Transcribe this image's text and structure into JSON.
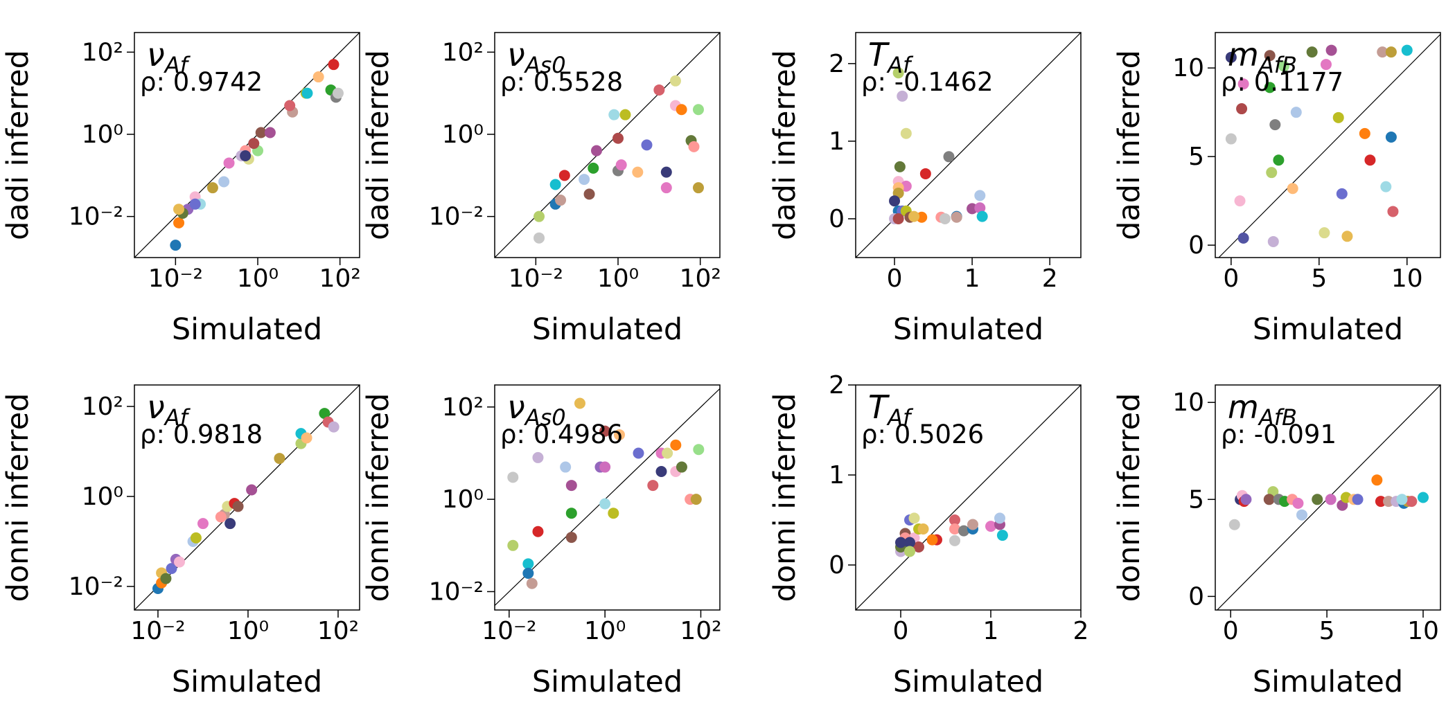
{
  "chart_data": [
    {
      "type": "scatter",
      "title": "ν",
      "title_subscript": "Af",
      "annotation": "ρ: 0.9742",
      "xlabel": "Simulated",
      "ylabel": "dadi inferred",
      "log_scale": true,
      "diagonal": true,
      "xlim": [
        0.001,
        300
      ],
      "ylim": [
        0.001,
        300
      ],
      "xticks": [
        {
          "value": 0.01,
          "label": "10⁻²"
        },
        {
          "value": 1,
          "label": "10⁰"
        },
        {
          "value": 100,
          "label": "10²"
        }
      ],
      "yticks": [
        {
          "value": 0.01,
          "label": "10⁻²"
        },
        {
          "value": 1,
          "label": "10⁰"
        },
        {
          "value": 100,
          "label": "10²"
        }
      ],
      "x": [
        0.01,
        0.15,
        0.012,
        30,
        60,
        1,
        70,
        0.5,
        0.02,
        0.4,
        1.2,
        7,
        0.2,
        0.03,
        80,
        90,
        15,
        0.6,
        16,
        0.04,
        0.5,
        0.015,
        0.08,
        0.8,
        2,
        0.03,
        0.012,
        6
      ],
      "y": [
        0.002,
        0.07,
        0.007,
        25,
        12,
        0.4,
        50,
        0.4,
        0.015,
        0.3,
        1.1,
        3.5,
        0.2,
        0.03,
        8,
        10,
        10,
        0.25,
        10,
        0.02,
        0.3,
        0.012,
        0.05,
        0.6,
        1.1,
        0.02,
        0.015,
        5
      ],
      "colors": [
        "#1f77b4",
        "#aec7e8",
        "#ff7f0e",
        "#ffbb78",
        "#2ca02c",
        "#98df8a",
        "#d62728",
        "#ff9896",
        "#9467bd",
        "#c5b0d5",
        "#8c564b",
        "#c49c94",
        "#e377c2",
        "#f7b6d2",
        "#7f7f7f",
        "#c7c7c7",
        "#bcbd22",
        "#dbdb8d",
        "#17becf",
        "#9edae5",
        "#393b79",
        "#637939",
        "#bd9e39",
        "#ad494a",
        "#a55194",
        "#6b6ecf",
        "#e7ba52",
        "#d6616b"
      ]
    },
    {
      "type": "scatter",
      "title": "ν",
      "title_subscript": "As0",
      "annotation": "ρ: 0.5528",
      "xlabel": "Simulated",
      "ylabel": "dadi inferred",
      "log_scale": true,
      "diagonal": true,
      "xlim": [
        0.001,
        300
      ],
      "ylim": [
        0.001,
        300
      ],
      "xticks": [
        {
          "value": 0.01,
          "label": "10⁻²"
        },
        {
          "value": 1,
          "label": "10⁰"
        },
        {
          "value": 100,
          "label": "10²"
        }
      ],
      "yticks": [
        {
          "value": 0.01,
          "label": "10⁻²"
        },
        {
          "value": 1,
          "label": "10⁰"
        },
        {
          "value": 100,
          "label": "10²"
        }
      ],
      "x": [
        0.012,
        0.012,
        0.03,
        0.03,
        0.04,
        0.05,
        0.15,
        0.2,
        0.25,
        0.3,
        0.8,
        1.5,
        1,
        1,
        1.2,
        3,
        5,
        10,
        15,
        15,
        25,
        25,
        35,
        60,
        70,
        90,
        90
      ],
      "y": [
        0.003,
        0.01,
        0.02,
        0.06,
        0.025,
        0.1,
        0.08,
        0.035,
        0.15,
        0.4,
        3,
        3,
        0.8,
        0.13,
        0.18,
        0.12,
        0.55,
        12,
        0.12,
        0.05,
        20,
        5,
        4,
        0.7,
        0.5,
        4,
        0.05
      ],
      "colors": [
        "#c7c7c7",
        "#b5cf6b",
        "#1f77b4",
        "#17becf",
        "#c49c94",
        "#d62728",
        "#aec7e8",
        "#8c564b",
        "#2ca02c",
        "#a55194",
        "#9edae5",
        "#bcbd22",
        "#ad494a",
        "#7f7f7f",
        "#e377c2",
        "#ffbb78",
        "#6b6ecf",
        "#d6616b",
        "#393b79",
        "#e377c2",
        "#dbdb8d",
        "#f7b6d2",
        "#ff7f0e",
        "#637939",
        "#ff9896",
        "#98df8a",
        "#bd9e39"
      ]
    },
    {
      "type": "scatter",
      "title": "T",
      "title_subscript": "Af",
      "annotation": "ρ: -0.1462",
      "xlabel": "Simulated",
      "ylabel": "dadi inferred",
      "log_scale": false,
      "diagonal": true,
      "xlim": [
        -0.5,
        2.4
      ],
      "ylim": [
        -0.5,
        2.4
      ],
      "xticks": [
        0,
        1,
        2
      ],
      "yticks": [
        0,
        1,
        2
      ],
      "x": [
        0.05,
        0.1,
        0.15,
        0.07,
        0.7,
        0.4,
        0.05,
        0.15,
        0.05,
        0.05,
        0,
        0.05,
        0.1,
        0.15,
        0,
        0.05,
        0.2,
        0.35,
        0.6,
        0.65,
        0.8,
        0.8,
        1,
        1.1,
        1.1,
        1.13,
        0.25
      ],
      "y": [
        1.88,
        1.58,
        1.1,
        0.67,
        0.8,
        0.58,
        0.48,
        0.42,
        0.4,
        0.33,
        0.23,
        0.1,
        0.1,
        0.1,
        0,
        0,
        0.02,
        0.02,
        0.02,
        0,
        0.03,
        0.02,
        0.13,
        0.14,
        0.3,
        0.03,
        0.03
      ],
      "colors": [
        "#b5cf6b",
        "#c5b0d5",
        "#dbdb8d",
        "#637939",
        "#7f7f7f",
        "#d62728",
        "#f7b6d2",
        "#e377c2",
        "#ffbb78",
        "#bd9e39",
        "#393b79",
        "#1f77b4",
        "#6b6ecf",
        "#bcbd22",
        "#c5b0d5",
        "#ad494a",
        "#8c564b",
        "#ff7f0e",
        "#ff9896",
        "#c7c7c7",
        "#1f77b4",
        "#c49c94",
        "#a55194",
        "#ce6dbd",
        "#aec7e8",
        "#17becf",
        "#e7ba52"
      ]
    },
    {
      "type": "scatter",
      "title": "m",
      "title_subscript": "AfB",
      "annotation": "ρ: 0.1177",
      "xlabel": "Simulated",
      "ylabel": "dadi inferred",
      "log_scale": false,
      "diagonal": true,
      "xlim": [
        -0.9,
        11.9
      ],
      "ylim": [
        -0.7,
        12
      ],
      "xticks": [
        0,
        5,
        10
      ],
      "yticks": [
        0,
        5,
        10
      ],
      "x": [
        0,
        0.6,
        0.7,
        0,
        0.5,
        0.7,
        2.2,
        2.5,
        2.2,
        2.7,
        2.3,
        3.5,
        3.7,
        2.4,
        4.6,
        5.7,
        5.4,
        6.1,
        5.3,
        6.3,
        6.6,
        7.6,
        7.9,
        8.6,
        9.1,
        9.1,
        8.8,
        9.2,
        10,
        3
      ],
      "y": [
        10.6,
        7.7,
        9.1,
        6,
        2.5,
        0.4,
        10.7,
        6.8,
        8.9,
        4.8,
        4.1,
        3.2,
        7.5,
        0.2,
        10.9,
        11,
        10.2,
        7.2,
        0.7,
        2.9,
        0.5,
        6.3,
        4.8,
        10.9,
        10.9,
        6.1,
        3.3,
        1.9,
        11,
        10.1
      ],
      "colors": [
        "#393b79",
        "#ad494a",
        "#e377c2",
        "#c7c7c7",
        "#f7b6d2",
        "#5254a3",
        "#8c564b",
        "#7f7f7f",
        "#2ca02c",
        "#2ca02c",
        "#b5cf6b",
        "#ffbb78",
        "#aec7e8",
        "#c5b0d5",
        "#637939",
        "#a55194",
        "#e377c2",
        "#bcbd22",
        "#dbdb8d",
        "#6b6ecf",
        "#e7ba52",
        "#ff7f0e",
        "#d62728",
        "#c49c94",
        "#bd9e39",
        "#1f77b4",
        "#9edae5",
        "#d6616b",
        "#17becf",
        "#98df8a"
      ]
    },
    {
      "type": "scatter",
      "title": "ν",
      "title_subscript": "Af",
      "annotation": "ρ: 0.9818",
      "xlabel": "Simulated",
      "ylabel": "donni inferred",
      "log_scale": true,
      "diagonal": true,
      "xlim": [
        0.003,
        300
      ],
      "ylim": [
        0.003,
        300
      ],
      "xticks": [
        {
          "value": 0.01,
          "label": "10⁻²"
        },
        {
          "value": 1,
          "label": "10⁰"
        },
        {
          "value": 100,
          "label": "10²"
        }
      ],
      "yticks": [
        {
          "value": 0.01,
          "label": "10⁻²"
        },
        {
          "value": 1,
          "label": "10⁰"
        },
        {
          "value": 100,
          "label": "10²"
        }
      ],
      "x": [
        0.01,
        0.012,
        0.012,
        0.015,
        0.02,
        0.025,
        0.03,
        0.06,
        0.07,
        0.1,
        0.3,
        0.35,
        0.4,
        0.5,
        0.6,
        1.2,
        5,
        15,
        15,
        20,
        50,
        60,
        80,
        0.25
      ],
      "y": [
        0.009,
        0.012,
        0.02,
        0.015,
        0.025,
        0.04,
        0.035,
        0.1,
        0.12,
        0.25,
        0.4,
        0.6,
        0.25,
        0.7,
        0.6,
        1.4,
        7,
        15,
        25,
        20,
        70,
        45,
        35,
        0.35
      ],
      "colors": [
        "#1f77b4",
        "#ff7f0e",
        "#e7ba52",
        "#637939",
        "#6b6ecf",
        "#9467bd",
        "#f7b6d2",
        "#aec7e8",
        "#bcbd22",
        "#e377c2",
        "#c49c94",
        "#dbdb8d",
        "#393b79",
        "#d62728",
        "#8c564b",
        "#a55194",
        "#bd9e39",
        "#b5cf6b",
        "#17becf",
        "#ffbb78",
        "#2ca02c",
        "#d6616b",
        "#c5b0d5",
        "#ff9896"
      ]
    },
    {
      "type": "scatter",
      "title": "ν",
      "title_subscript": "As0",
      "annotation": "ρ: 0.4986",
      "xlabel": "Simulated",
      "ylabel": "donni inferred",
      "log_scale": true,
      "diagonal": true,
      "xlim": [
        0.005,
        250
      ],
      "ylim": [
        0.004,
        300
      ],
      "xticks": [
        {
          "value": 0.01,
          "label": "10⁻²"
        },
        {
          "value": 1,
          "label": "10⁰"
        },
        {
          "value": 100,
          "label": "10²"
        }
      ],
      "yticks": [
        {
          "value": 0.01,
          "label": "10⁻²"
        },
        {
          "value": 1,
          "label": "10⁰"
        },
        {
          "value": 100,
          "label": "10²"
        }
      ],
      "x": [
        0.012,
        0.012,
        0.025,
        0.025,
        0.03,
        0.04,
        0.04,
        0.15,
        0.2,
        0.2,
        0.2,
        0.3,
        0.8,
        1,
        1,
        1,
        1.5,
        2,
        5,
        10,
        15,
        15,
        20,
        30,
        30,
        40,
        60,
        80,
        90
      ],
      "y": [
        3,
        0.1,
        0.04,
        0.025,
        0.015,
        0.2,
        8,
        5,
        0.5,
        2,
        0.15,
        120,
        5,
        5,
        0.8,
        30,
        0.5,
        25,
        10,
        2,
        4,
        10,
        10,
        15,
        4,
        5,
        1,
        1,
        12
      ],
      "colors": [
        "#c7c7c7",
        "#b5cf6b",
        "#17becf",
        "#1f77b4",
        "#c49c94",
        "#d62728",
        "#c5b0d5",
        "#aec7e8",
        "#2ca02c",
        "#a55194",
        "#8c564b",
        "#e7ba52",
        "#9467bd",
        "#ce6dbd",
        "#9edae5",
        "#ad494a",
        "#bcbd22",
        "#ffbb78",
        "#6b6ecf",
        "#d6616b",
        "#393b79",
        "#e377c2",
        "#dbdb8d",
        "#ff7f0e",
        "#f7b6d2",
        "#637939",
        "#ff9896",
        "#bd9e39",
        "#98df8a"
      ]
    },
    {
      "type": "scatter",
      "title": "T",
      "title_subscript": "Af",
      "annotation": "ρ: 0.5026",
      "xlabel": "Simulated",
      "ylabel": "donni inferred",
      "log_scale": false,
      "diagonal": true,
      "xlim": [
        -0.5,
        2
      ],
      "ylim": [
        -0.5,
        2
      ],
      "xticks": [
        0,
        1,
        2
      ],
      "yticks": [
        0,
        1,
        2
      ],
      "x": [
        0,
        0,
        0.05,
        0.1,
        0.15,
        0.15,
        0.2,
        0.2,
        0.25,
        0.05,
        0.1,
        0.4,
        0.35,
        0.6,
        0.6,
        0.6,
        0.7,
        0.8,
        0.8,
        1,
        1.1,
        1.1,
        1.13,
        0,
        0.1
      ],
      "y": [
        0.15,
        0.2,
        0.35,
        0.5,
        0.52,
        0.3,
        0.4,
        0.2,
        0.4,
        0.3,
        0.25,
        0.28,
        0.28,
        0.5,
        0.4,
        0.27,
        0.38,
        0.4,
        0.45,
        0.43,
        0.45,
        0.52,
        0.33,
        0.25,
        0.15
      ],
      "colors": [
        "#c5b0d5",
        "#637939",
        "#8c564b",
        "#6b6ecf",
        "#dbdb8d",
        "#f7b6d2",
        "#bcbd22",
        "#ad494a",
        "#e7ba52",
        "#ff9896",
        "#393b79",
        "#d62728",
        "#ff7f0e",
        "#d6616b",
        "#ff9896",
        "#c7c7c7",
        "#7f7f7f",
        "#1f77b4",
        "#c49c94",
        "#e377c2",
        "#a55194",
        "#aec7e8",
        "#17becf",
        "#393b79",
        "#b5cf6b"
      ]
    },
    {
      "type": "scatter",
      "title": "m",
      "title_subscript": "AfB",
      "annotation": "ρ: -0.091",
      "xlabel": "Simulated",
      "ylabel": "donni inferred",
      "log_scale": false,
      "diagonal": true,
      "xlim": [
        -0.8,
        10.9
      ],
      "ylim": [
        -0.7,
        10.9
      ],
      "xticks": [
        0,
        5,
        10
      ],
      "yticks": [
        0,
        5,
        10
      ],
      "x": [
        0.2,
        0.5,
        0.6,
        0.7,
        0.8,
        2.2,
        2,
        2.5,
        2.8,
        3.2,
        3.5,
        3.7,
        4.5,
        5.2,
        5.8,
        6,
        6.4,
        6.6,
        7.6,
        7.8,
        8.2,
        8.6,
        9,
        9.2,
        9.4,
        10,
        8.9
      ],
      "y": [
        3.7,
        5,
        5.2,
        4.9,
        5,
        5.4,
        5,
        5,
        4.9,
        5,
        4.8,
        4.2,
        5,
        5,
        4.7,
        5.1,
        5,
        5,
        6,
        4.9,
        4.9,
        4.9,
        4.8,
        4.9,
        4.9,
        5.1,
        5
      ],
      "colors": [
        "#c7c7c7",
        "#393b79",
        "#f7b6d2",
        "#d62728",
        "#9467bd",
        "#b5cf6b",
        "#8c564b",
        "#7f7f7f",
        "#2ca02c",
        "#ff9896",
        "#e377c2",
        "#aec7e8",
        "#637939",
        "#ce6dbd",
        "#a55194",
        "#bcbd22",
        "#ffbb78",
        "#6b6ecf",
        "#ff7f0e",
        "#d62728",
        "#c49c94",
        "#c5b0d5",
        "#1f77b4",
        "#bd9e39",
        "#d6616b",
        "#17becf",
        "#9edae5"
      ]
    }
  ]
}
